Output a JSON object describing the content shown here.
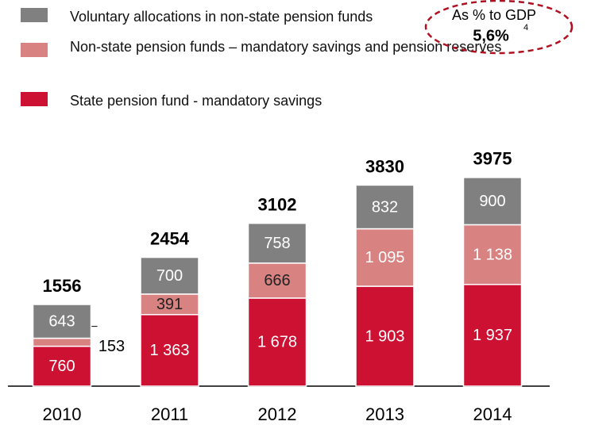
{
  "chart_data": {
    "type": "stacked-bar",
    "categories": [
      "2010",
      "2011",
      "2012",
      "2013",
      "2014"
    ],
    "series": [
      {
        "name": "State pension fund - mandatory savings",
        "color": "#cc1133",
        "values": [
          760,
          1363,
          1678,
          1903,
          1937
        ],
        "value_labels": [
          "760",
          "1 363",
          "1 678",
          "1 903",
          "1 937"
        ]
      },
      {
        "name": "Non-state pension funds – mandatory savings and pension reserves",
        "color": "#d98282",
        "values": [
          153,
          391,
          666,
          1095,
          1138
        ],
        "value_labels": [
          "153",
          "391",
          "666",
          "1 095",
          "1 138"
        ]
      },
      {
        "name": "Voluntary allocations in non-state pension funds",
        "color": "#808080",
        "values": [
          643,
          700,
          758,
          832,
          900
        ],
        "value_labels": [
          "643",
          "700",
          "758",
          "832",
          "900"
        ]
      }
    ],
    "totals": [
      1556,
      2454,
      3102,
      3830,
      3975
    ],
    "annotation": {
      "text": "As % to GDP",
      "value": "5,6%",
      "footnote": "4"
    }
  }
}
